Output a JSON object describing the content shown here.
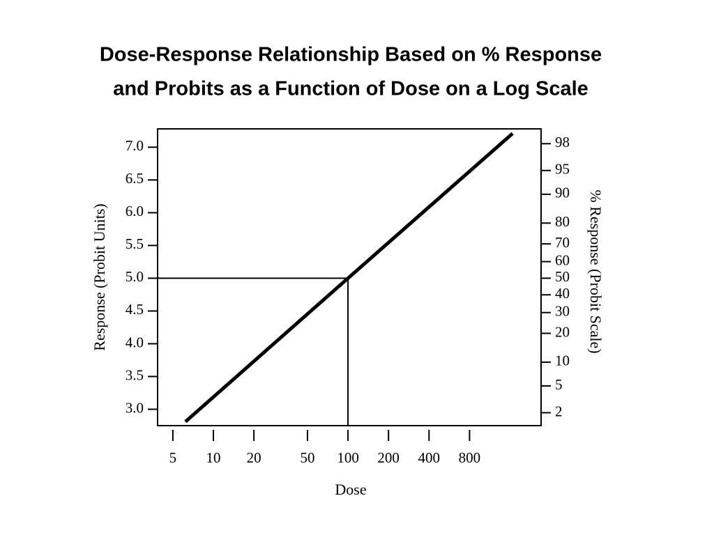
{
  "chart_data": {
    "type": "line",
    "title": [
      "Dose-Response Relationship Based on % Response",
      "and Probits as a Function of Dose on a Log Scale"
    ],
    "x_label": "Dose",
    "y_label": "Response (Probit Units)",
    "y2_label": "% Response (Probit Scale)",
    "xscale": "log",
    "xlim": [
      3.85,
      2720
    ],
    "xticks": [
      5,
      10,
      20,
      50,
      100,
      200,
      400,
      800
    ],
    "ylim": [
      2.75,
      7.28
    ],
    "yticks": [
      {
        "value": 3,
        "label": "3.0"
      },
      3.5,
      {
        "value": 4,
        "label": "4.0"
      },
      4.5,
      {
        "value": 5,
        "label": "5.0"
      },
      5.5,
      {
        "value": 6,
        "label": "6.0"
      },
      6.5,
      {
        "value": 7,
        "label": "7.0"
      }
    ],
    "y2scale": "probit",
    "y2lim": [
      1.22,
      98.87
    ],
    "y2ticks": [
      2,
      5,
      10,
      20,
      30,
      40,
      50,
      60,
      70,
      80,
      90,
      95,
      98
    ],
    "reference": {
      "x": 100,
      "y": 5
    },
    "series": [
      {
        "color": "#000000",
        "x": [
          6.2,
          100,
          1670
        ],
        "values": [
          2.81,
          5,
          7.21
        ]
      }
    ]
  }
}
